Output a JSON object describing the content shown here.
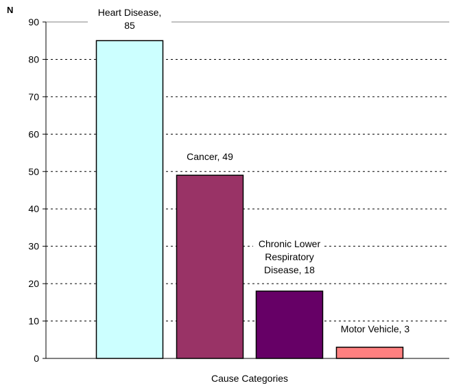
{
  "chart_data": {
    "type": "bar",
    "title": "",
    "xlabel": "Cause Categories",
    "ylabel": "N",
    "ylim": [
      0,
      90
    ],
    "yticks": [
      0,
      10,
      20,
      30,
      40,
      50,
      60,
      70,
      80,
      90
    ],
    "grid": "horizontal dashed",
    "categories": [
      "Heart Disease",
      "Cancer",
      "Chronic Lower Respiratory Disease",
      "Motor Vehicle"
    ],
    "values": [
      85,
      49,
      18,
      3
    ],
    "data_labels": [
      [
        "Heart Disease,",
        "85"
      ],
      [
        "Cancer, 49"
      ],
      [
        "Chronic Lower",
        "Respiratory",
        "Disease, 18"
      ],
      [
        "Motor Vehicle, 3"
      ]
    ],
    "colors": [
      "#ccffff",
      "#993366",
      "#660066",
      "#ff8080"
    ]
  }
}
